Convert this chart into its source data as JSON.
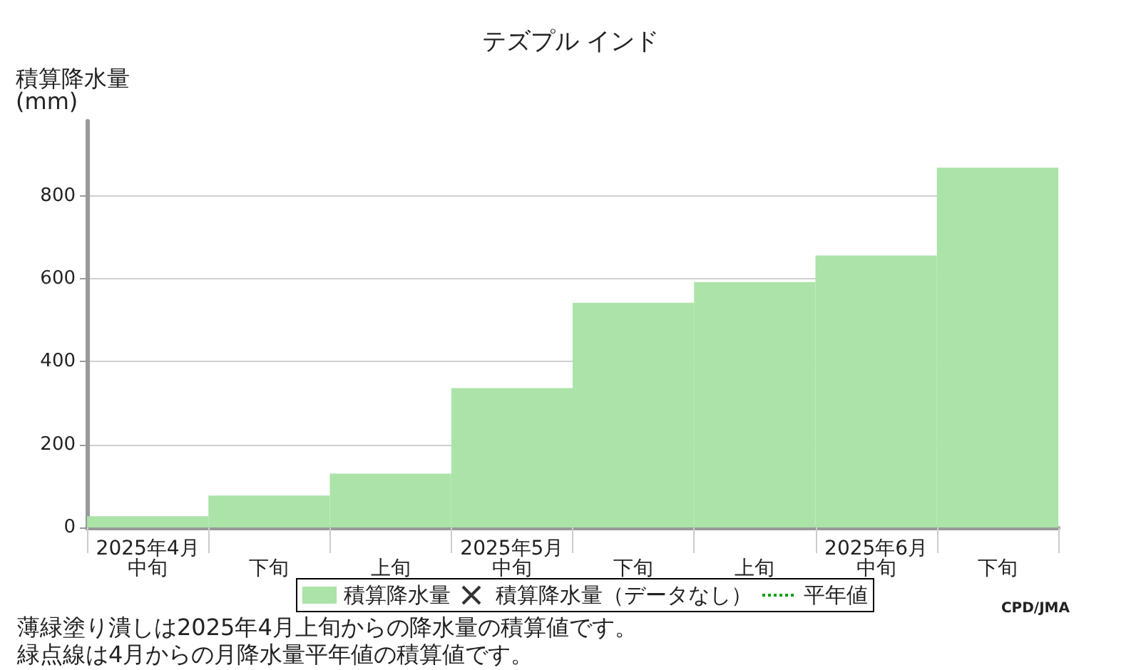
{
  "chart_data": {
    "type": "bar",
    "title": "テズプル インド",
    "ylabel": "積算降水量(mm)",
    "categories": [
      "2025年4月中旬",
      "下旬",
      "上旬",
      "2025年5月中旬",
      "下旬",
      "上旬",
      "2025年6月中旬",
      "下旬"
    ],
    "series": [
      {
        "name": "積算降水量",
        "color": "#abe3a9",
        "values": [
          27,
          77,
          130,
          336,
          542,
          592,
          656,
          868
        ]
      },
      {
        "name": "積算降水量（データなし）",
        "type": "scatter",
        "marker": "cross",
        "color": "#000000",
        "values": [
          null,
          null,
          null,
          null,
          null,
          null,
          null,
          null
        ]
      },
      {
        "name": "平年値",
        "type": "line",
        "line_style": "dotted",
        "color": "#00a000",
        "values": [
          null,
          null,
          null,
          null,
          null,
          null,
          null,
          null
        ]
      }
    ],
    "ylim": [
      0,
      980
    ],
    "yticks": [
      0,
      200,
      400,
      600,
      800
    ],
    "grid": "y",
    "legend": "bottom",
    "annotations": [
      "CPD/JMA",
      "薄緑塗り潰しは2025年4月上旬からの降水量の積算値です。",
      "緑点線は4月からの月降水量平年値の積算値です。"
    ]
  }
}
